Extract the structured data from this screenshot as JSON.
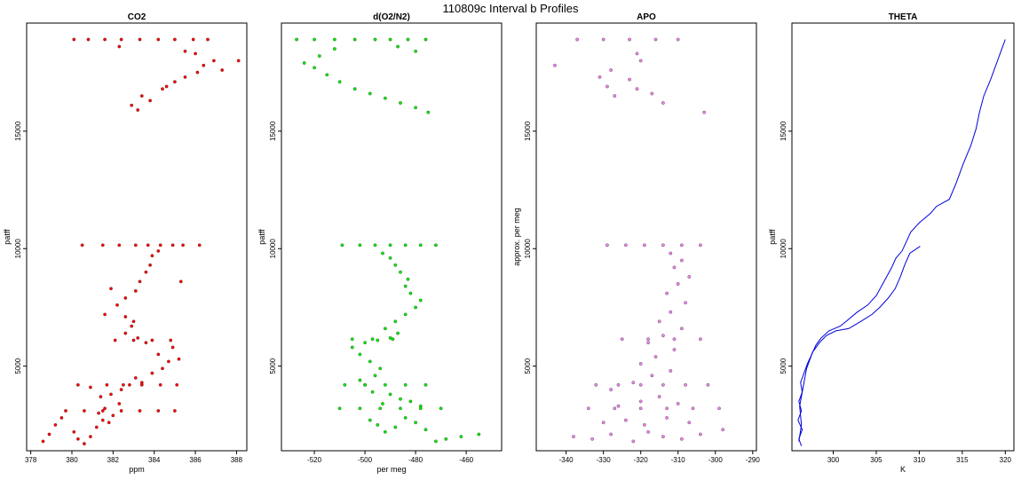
{
  "figure": {
    "title": "110809c   Interval b Profiles"
  },
  "chart_data": [
    {
      "type": "scatter",
      "title": "CO2",
      "xlabel": "ppm",
      "ylabel": "patff",
      "xlim": [
        377.8,
        388.5
      ],
      "ylim": [
        1400,
        19600
      ],
      "xticks": [
        378,
        380,
        382,
        384,
        386,
        388
      ],
      "yticks": [
        5000,
        10000,
        15000
      ],
      "color": "#ff0000",
      "points": [
        [
          378.6,
          1800
        ],
        [
          378.9,
          2100
        ],
        [
          379.2,
          2500
        ],
        [
          379.5,
          2800
        ],
        [
          379.7,
          3100
        ],
        [
          380.1,
          2200
        ],
        [
          380.3,
          1900
        ],
        [
          380.6,
          1700
        ],
        [
          380.9,
          2000
        ],
        [
          381.2,
          2400
        ],
        [
          381.5,
          2700
        ],
        [
          381.8,
          2600
        ],
        [
          381.3,
          3000
        ],
        [
          381.6,
          3200
        ],
        [
          382.0,
          2900
        ],
        [
          382.3,
          3400
        ],
        [
          381.4,
          3700
        ],
        [
          381.9,
          3800
        ],
        [
          382.4,
          4000
        ],
        [
          382.8,
          4200
        ],
        [
          383.1,
          4500
        ],
        [
          383.4,
          4300
        ],
        [
          383.9,
          4700
        ],
        [
          384.4,
          4900
        ],
        [
          384.7,
          5200
        ],
        [
          384.2,
          5500
        ],
        [
          384.9,
          5800
        ],
        [
          385.2,
          5300
        ],
        [
          383.6,
          6000
        ],
        [
          383.2,
          6200
        ],
        [
          382.6,
          6400
        ],
        [
          382.9,
          6700
        ],
        [
          383.0,
          6900
        ],
        [
          381.6,
          7200
        ],
        [
          382.2,
          7600
        ],
        [
          382.6,
          7900
        ],
        [
          383.1,
          8200
        ],
        [
          383.3,
          8600
        ],
        [
          383.6,
          9000
        ],
        [
          383.8,
          9300
        ],
        [
          383.9,
          9700
        ],
        [
          384.2,
          9900
        ],
        [
          380.3,
          4200
        ],
        [
          380.9,
          4100
        ],
        [
          381.7,
          4200
        ],
        [
          382.5,
          4200
        ],
        [
          383.4,
          4200
        ],
        [
          384.3,
          4200
        ],
        [
          385.1,
          4200
        ],
        [
          380.6,
          3100
        ],
        [
          381.5,
          3100
        ],
        [
          382.4,
          3100
        ],
        [
          383.3,
          3100
        ],
        [
          384.2,
          3100
        ],
        [
          385.0,
          3100
        ],
        [
          382.1,
          6100
        ],
        [
          383.0,
          6100
        ],
        [
          383.9,
          6100
        ],
        [
          384.8,
          6100
        ],
        [
          380.5,
          10150
        ],
        [
          381.5,
          10150
        ],
        [
          382.3,
          10150
        ],
        [
          383.1,
          10150
        ],
        [
          383.7,
          10150
        ],
        [
          384.3,
          10150
        ],
        [
          384.9,
          10150
        ],
        [
          385.4,
          10150
        ],
        [
          386.2,
          10150
        ],
        [
          382.6,
          7100
        ],
        [
          381.9,
          8300
        ],
        [
          385.3,
          8600
        ],
        [
          383.2,
          15900
        ],
        [
          382.9,
          16100
        ],
        [
          383.4,
          16500
        ],
        [
          383.8,
          16300
        ],
        [
          384.4,
          16800
        ],
        [
          384.6,
          16900
        ],
        [
          385.0,
          17100
        ],
        [
          385.5,
          17300
        ],
        [
          386.1,
          17500
        ],
        [
          386.4,
          17800
        ],
        [
          386.9,
          18000
        ],
        [
          387.3,
          17600
        ],
        [
          388.1,
          18000
        ],
        [
          382.3,
          18600
        ],
        [
          380.1,
          18900
        ],
        [
          380.8,
          18900
        ],
        [
          381.6,
          18900
        ],
        [
          382.4,
          18900
        ],
        [
          383.3,
          18900
        ],
        [
          384.2,
          18900
        ],
        [
          385.0,
          18900
        ],
        [
          385.9,
          18900
        ],
        [
          386.6,
          18900
        ],
        [
          386.0,
          18300
        ],
        [
          385.5,
          18400
        ]
      ]
    },
    {
      "type": "scatter",
      "title": "d(O2/N2)",
      "xlabel": "per meg",
      "ylabel": "patff",
      "xlim": [
        -533,
        -446
      ],
      "ylim": [
        1400,
        19600
      ],
      "xticks": [
        -520,
        -500,
        -480,
        -460
      ],
      "yticks": [
        5000,
        10000,
        15000
      ],
      "color": "#00ee00",
      "points": [
        [
          -455,
          2100
        ],
        [
          -462,
          2000
        ],
        [
          -468,
          1900
        ],
        [
          -472,
          1800
        ],
        [
          -476,
          2300
        ],
        [
          -480,
          2600
        ],
        [
          -484,
          2800
        ],
        [
          -488,
          2400
        ],
        [
          -492,
          2200
        ],
        [
          -495,
          2500
        ],
        [
          -498,
          2700
        ],
        [
          -478,
          3300
        ],
        [
          -482,
          3500
        ],
        [
          -486,
          3600
        ],
        [
          -490,
          3800
        ],
        [
          -493,
          3400
        ],
        [
          -497,
          3900
        ],
        [
          -500,
          4200
        ],
        [
          -502,
          4400
        ],
        [
          -496,
          4600
        ],
        [
          -494,
          4900
        ],
        [
          -498,
          5200
        ],
        [
          -502,
          5500
        ],
        [
          -505,
          5800
        ],
        [
          -500,
          6000
        ],
        [
          -495,
          6100
        ],
        [
          -490,
          6200
        ],
        [
          -487,
          6400
        ],
        [
          -492,
          6600
        ],
        [
          -488,
          6900
        ],
        [
          -484,
          7200
        ],
        [
          -480,
          7500
        ],
        [
          -478,
          7800
        ],
        [
          -482,
          8100
        ],
        [
          -484,
          8400
        ],
        [
          -483,
          8700
        ],
        [
          -486,
          9000
        ],
        [
          -488,
          9300
        ],
        [
          -490,
          9600
        ],
        [
          -493,
          9800
        ],
        [
          -508,
          4200
        ],
        [
          -500,
          4200
        ],
        [
          -492,
          4200
        ],
        [
          -484,
          4200
        ],
        [
          -476,
          4200
        ],
        [
          -510,
          3200
        ],
        [
          -502,
          3200
        ],
        [
          -494,
          3200
        ],
        [
          -486,
          3200
        ],
        [
          -478,
          3200
        ],
        [
          -470,
          3200
        ],
        [
          -505,
          6150
        ],
        [
          -497,
          6150
        ],
        [
          -489,
          6150
        ],
        [
          -509,
          10150
        ],
        [
          -502,
          10150
        ],
        [
          -496,
          10150
        ],
        [
          -490,
          10150
        ],
        [
          -484,
          10150
        ],
        [
          -478,
          10150
        ],
        [
          -472,
          10150
        ],
        [
          -475,
          15800
        ],
        [
          -480,
          16000
        ],
        [
          -486,
          16200
        ],
        [
          -492,
          16400
        ],
        [
          -498,
          16600
        ],
        [
          -504,
          16800
        ],
        [
          -510,
          17100
        ],
        [
          -515,
          17400
        ],
        [
          -520,
          17700
        ],
        [
          -524,
          17900
        ],
        [
          -518,
          18200
        ],
        [
          -512,
          18500
        ],
        [
          -527,
          18900
        ],
        [
          -520,
          18900
        ],
        [
          -512,
          18900
        ],
        [
          -504,
          18900
        ],
        [
          -496,
          18900
        ],
        [
          -490,
          18900
        ],
        [
          -483,
          18900
        ],
        [
          -476,
          18900
        ],
        [
          -487,
          18600
        ],
        [
          -480,
          18400
        ]
      ]
    },
    {
      "type": "scatter",
      "title": "APO",
      "xlabel": "",
      "ylabel": "approx. per meg",
      "xlim": [
        -348,
        -289
      ],
      "ylim": [
        1400,
        19600
      ],
      "xticks": [
        -340,
        -330,
        -320,
        -310,
        -300,
        -290
      ],
      "yticks": [
        5000,
        10000,
        15000
      ],
      "color": "#ee82ee",
      "points": [
        [
          -338,
          2000
        ],
        [
          -333,
          1900
        ],
        [
          -328,
          2100
        ],
        [
          -322,
          1800
        ],
        [
          -318,
          2200
        ],
        [
          -314,
          2000
        ],
        [
          -309,
          1900
        ],
        [
          -304,
          2100
        ],
        [
          -298,
          2300
        ],
        [
          -330,
          2600
        ],
        [
          -324,
          2700
        ],
        [
          -319,
          2500
        ],
        [
          -313,
          2800
        ],
        [
          -307,
          2600
        ],
        [
          -326,
          3300
        ],
        [
          -320,
          3500
        ],
        [
          -315,
          3700
        ],
        [
          -310,
          3400
        ],
        [
          -328,
          4000
        ],
        [
          -322,
          4300
        ],
        [
          -317,
          4600
        ],
        [
          -312,
          4800
        ],
        [
          -320,
          5100
        ],
        [
          -316,
          5400
        ],
        [
          -311,
          5700
        ],
        [
          -318,
          6000
        ],
        [
          -314,
          6300
        ],
        [
          -309,
          6600
        ],
        [
          -315,
          6900
        ],
        [
          -312,
          7300
        ],
        [
          -308,
          7700
        ],
        [
          -313,
          8100
        ],
        [
          -310,
          8500
        ],
        [
          -307,
          8800
        ],
        [
          -311,
          9200
        ],
        [
          -309,
          9500
        ],
        [
          -312,
          9800
        ],
        [
          -332,
          4200
        ],
        [
          -326,
          4200
        ],
        [
          -320,
          4200
        ],
        [
          -314,
          4200
        ],
        [
          -308,
          4200
        ],
        [
          -302,
          4200
        ],
        [
          -334,
          3200
        ],
        [
          -327,
          3200
        ],
        [
          -320,
          3200
        ],
        [
          -313,
          3200
        ],
        [
          -306,
          3200
        ],
        [
          -299,
          3200
        ],
        [
          -325,
          6150
        ],
        [
          -318,
          6150
        ],
        [
          -311,
          6150
        ],
        [
          -304,
          6150
        ],
        [
          -329,
          10150
        ],
        [
          -324,
          10150
        ],
        [
          -319,
          10150
        ],
        [
          -314,
          10150
        ],
        [
          -309,
          10150
        ],
        [
          -304,
          10150
        ],
        [
          -327,
          16500
        ],
        [
          -329,
          16900
        ],
        [
          -331,
          17300
        ],
        [
          -328,
          17600
        ],
        [
          -323,
          17200
        ],
        [
          -321,
          16800
        ],
        [
          -317,
          16600
        ],
        [
          -314,
          16200
        ],
        [
          -303,
          15800
        ],
        [
          -321,
          18300
        ],
        [
          -320,
          18000
        ],
        [
          -343,
          17800
        ],
        [
          -337,
          18900
        ],
        [
          -330,
          18900
        ],
        [
          -323,
          18900
        ],
        [
          -316,
          18900
        ],
        [
          -310,
          18900
        ]
      ]
    },
    {
      "type": "line",
      "title": "THETA",
      "xlabel": "K",
      "ylabel": "patff",
      "xlim": [
        295.2,
        321.0
      ],
      "ylim": [
        1400,
        19600
      ],
      "xticks": [
        300,
        305,
        310,
        315,
        320
      ],
      "yticks": [
        5000,
        10000,
        15000
      ],
      "color": "#0000dd",
      "points": [
        [
          296.3,
          1600
        ],
        [
          296.0,
          1900
        ],
        [
          296.4,
          2300
        ],
        [
          295.9,
          2700
        ],
        [
          296.3,
          3100
        ],
        [
          296.0,
          3500
        ],
        [
          296.4,
          3900
        ],
        [
          296.2,
          4300
        ],
        [
          296.6,
          4700
        ],
        [
          297.0,
          5100
        ],
        [
          297.5,
          5500
        ],
        [
          298.0,
          5900
        ],
        [
          298.6,
          6200
        ],
        [
          299.5,
          6500
        ],
        [
          300.8,
          6700
        ],
        [
          301.5,
          6900
        ],
        [
          302.8,
          7300
        ],
        [
          304.0,
          7600
        ],
        [
          305.0,
          8000
        ],
        [
          305.6,
          8400
        ],
        [
          306.2,
          8800
        ],
        [
          306.8,
          9200
        ],
        [
          307.3,
          9600
        ],
        [
          308.0,
          9900
        ],
        [
          308.5,
          10300
        ],
        [
          309.0,
          10700
        ],
        [
          310.0,
          11100
        ],
        [
          311.3,
          11500
        ],
        [
          312.0,
          11800
        ],
        [
          313.5,
          12100
        ],
        [
          314.3,
          12800
        ],
        [
          315.1,
          13600
        ],
        [
          316.0,
          14400
        ],
        [
          316.6,
          15100
        ],
        [
          317.0,
          15800
        ],
        [
          317.5,
          16500
        ],
        [
          318.3,
          17200
        ],
        [
          319.0,
          17900
        ],
        [
          319.6,
          18500
        ],
        [
          320.0,
          18900
        ]
      ],
      "points_second_profile": [
        [
          296.0,
          1800
        ],
        [
          296.3,
          2500
        ],
        [
          296.1,
          3300
        ],
        [
          296.5,
          4100
        ],
        [
          296.9,
          4900
        ],
        [
          297.6,
          5600
        ],
        [
          298.4,
          6000
        ],
        [
          299.2,
          6300
        ],
        [
          300.3,
          6500
        ],
        [
          301.8,
          6600
        ],
        [
          303.2,
          6900
        ],
        [
          304.5,
          7200
        ],
        [
          305.4,
          7500
        ],
        [
          306.4,
          7900
        ],
        [
          307.2,
          8300
        ],
        [
          307.8,
          8800
        ],
        [
          308.3,
          9300
        ],
        [
          308.9,
          9800
        ],
        [
          310.1,
          10100
        ]
      ]
    }
  ]
}
